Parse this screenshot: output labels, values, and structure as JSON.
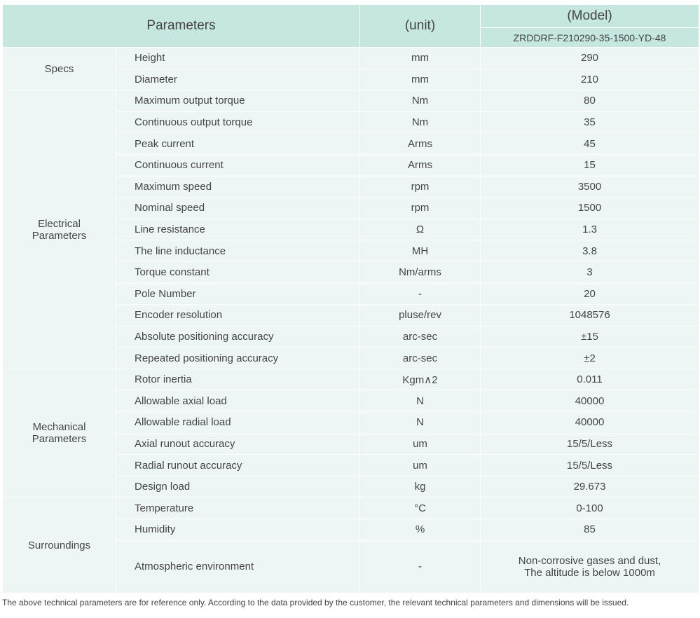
{
  "table": {
    "header": {
      "parameters": "Parameters",
      "unit": "(unit)",
      "model": "(Model)",
      "model_name": "ZRDDRF-F210290-35-1500-YD-48"
    },
    "groups": [
      {
        "name": "Specs",
        "rows": [
          [
            "Height",
            "mm",
            "290"
          ],
          [
            "Diameter",
            "mm",
            "210"
          ]
        ]
      },
      {
        "name": "Electrical Parameters",
        "rows": [
          [
            "Maximum output torque",
            "Nm",
            "80"
          ],
          [
            "Continuous output torque",
            "Nm",
            "35"
          ],
          [
            "Peak current",
            "Arms",
            "45"
          ],
          [
            "Continuous current",
            "Arms",
            "15"
          ],
          [
            "Maximum speed",
            "rpm",
            "3500"
          ],
          [
            "Nominal speed",
            "rpm",
            "1500"
          ],
          [
            "Line resistance",
            "Ω",
            "1.3"
          ],
          [
            "The line inductance",
            "MH",
            "3.8"
          ],
          [
            "Torque constant",
            "Nm/arms",
            "3"
          ],
          [
            "Pole Number",
            "-",
            "20"
          ],
          [
            "Encoder resolution",
            "pluse/rev",
            "1048576"
          ],
          [
            "Absolute positioning accuracy",
            "arc-sec",
            "±15"
          ],
          [
            "Repeated positioning accuracy",
            "arc-sec",
            "±2"
          ]
        ]
      },
      {
        "name": "Mechanical Parameters",
        "rows": [
          [
            "Rotor inertia",
            "Kgm∧2",
            "0.011"
          ],
          [
            "Allowable axial load",
            "N",
            "40000"
          ],
          [
            "Allowable radial load",
            "N",
            "40000"
          ],
          [
            "Axial runout accuracy",
            "um",
            "15/5/Less"
          ],
          [
            "Radial runout accuracy",
            "um",
            "15/5/Less"
          ],
          [
            "Design load",
            "kg",
            "29.673"
          ]
        ]
      },
      {
        "name": "Surroundings",
        "rows": [
          [
            "Temperature",
            "°C",
            "0-100"
          ],
          [
            "Humidity",
            "%",
            "85"
          ],
          [
            "Atmospheric environment",
            "-",
            "Non-corrosive gases and dust,\nThe altitude is below 1000m"
          ]
        ]
      }
    ]
  },
  "footer": "The above technical parameters are for reference only. According to the data provided by the customer, the relevant technical parameters and dimensions will be issued."
}
